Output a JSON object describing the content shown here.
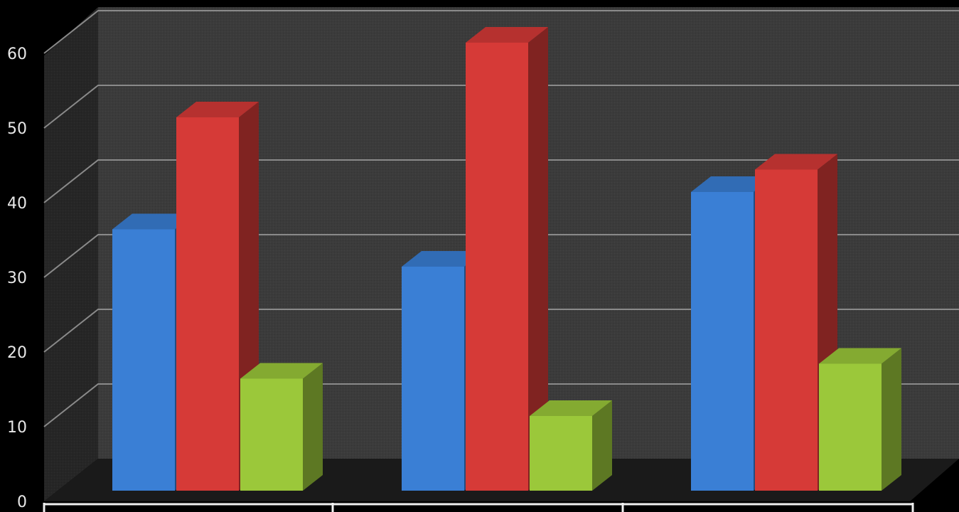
{
  "chart_data": {
    "type": "bar",
    "style": "3d-clustered-column",
    "title": "",
    "xlabel": "",
    "ylabel": "",
    "categories": [
      "",
      "",
      ""
    ],
    "series": [
      {
        "color": "#3a7fd5",
        "values": [
          35,
          30,
          40
        ]
      },
      {
        "color": "#d63a37",
        "values": [
          50,
          60,
          43
        ]
      },
      {
        "color": "#9bc83a",
        "values": [
          15,
          10,
          17
        ]
      }
    ],
    "ylim": [
      0,
      60
    ],
    "yticks": [
      "0",
      "10",
      "20",
      "30",
      "40",
      "50",
      "60"
    ],
    "grid": true,
    "legend": "none",
    "background": "#000000",
    "wall_color": "#3a3a3a"
  }
}
